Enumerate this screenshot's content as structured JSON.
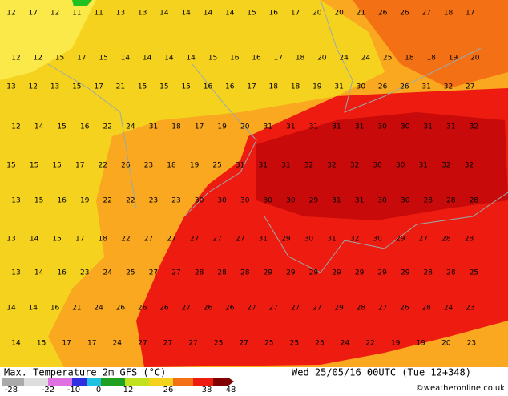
{
  "map": {
    "title": "Max. Temperature 2m GFS (°C)",
    "run": "Wed 25/05/16 00UTC (Tue 12+348)",
    "credit": "©weatheronline.co.uk",
    "scale_ticks": [
      -28,
      -22,
      -10,
      0,
      12,
      26,
      38,
      48
    ],
    "rows": [
      [
        12,
        17,
        12,
        11,
        11,
        13,
        13,
        14,
        14,
        14,
        14,
        15,
        16,
        17,
        20,
        20,
        21,
        26,
        26,
        27,
        18,
        17
      ],
      [
        12,
        12,
        15,
        17,
        15,
        14,
        14,
        14,
        14,
        15,
        16,
        16,
        17,
        18,
        20,
        24,
        24,
        25,
        18,
        18,
        19,
        20
      ],
      [
        13,
        12,
        13,
        15,
        17,
        21,
        15,
        15,
        15,
        16,
        16,
        17,
        18,
        18,
        19,
        31,
        30,
        26,
        26,
        31,
        32,
        27
      ],
      [
        12,
        14,
        15,
        16,
        22,
        24,
        31,
        18,
        17,
        19,
        20,
        31,
        31,
        31,
        31,
        31,
        30,
        30,
        31,
        31,
        32
      ],
      [
        15,
        15,
        15,
        17,
        22,
        26,
        23,
        18,
        19,
        25,
        31,
        31,
        31,
        32,
        32,
        32,
        30,
        30,
        31,
        32,
        32
      ],
      [
        13,
        15,
        16,
        19,
        22,
        22,
        23,
        23,
        30,
        30,
        30,
        30,
        30,
        29,
        31,
        31,
        30,
        30,
        28,
        28,
        28
      ],
      [
        13,
        14,
        15,
        17,
        18,
        22,
        27,
        27,
        27,
        27,
        27,
        31,
        29,
        30,
        31,
        32,
        30,
        29,
        27,
        28,
        28
      ],
      [
        13,
        14,
        16,
        23,
        24,
        25,
        27,
        27,
        28,
        28,
        28,
        29,
        29,
        29,
        29,
        29,
        29,
        29,
        28,
        28,
        25
      ],
      [
        14,
        14,
        16,
        21,
        24,
        26,
        26,
        26,
        27,
        26,
        26,
        27,
        27,
        27,
        27,
        29,
        28,
        27,
        26,
        28,
        24,
        23
      ],
      [
        14,
        15,
        17,
        17,
        24,
        27,
        27,
        27,
        25,
        27,
        25,
        25,
        25,
        24,
        22,
        19,
        19,
        20,
        23
      ]
    ]
  }
}
